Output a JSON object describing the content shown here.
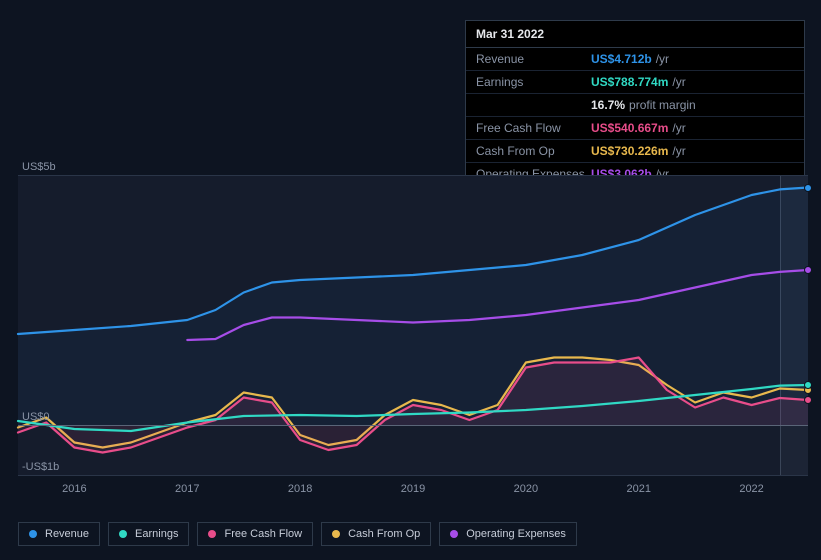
{
  "tooltip": {
    "date": "Mar 31 2022",
    "rows": [
      {
        "label": "Revenue",
        "value": "US$4.712b",
        "unit": "/yr",
        "color": "#2e93e8"
      },
      {
        "label": "Earnings",
        "value": "US$788.774m",
        "unit": "/yr",
        "color": "#30d9c4",
        "sub_value": "16.7%",
        "sub_label": "profit margin"
      },
      {
        "label": "Free Cash Flow",
        "value": "US$540.667m",
        "unit": "/yr",
        "color": "#e84d8a"
      },
      {
        "label": "Cash From Op",
        "value": "US$730.226m",
        "unit": "/yr",
        "color": "#e8b84d"
      },
      {
        "label": "Operating Expenses",
        "value": "US$3.062b",
        "unit": "/yr",
        "color": "#a64de8"
      }
    ]
  },
  "chart": {
    "type": "line",
    "background_color": "#151c2c",
    "page_background": "#0d1421",
    "grid_color": "#2a3548",
    "zero_line_color": "#5a6578",
    "font_size": 11,
    "label_color": "#8a94a6",
    "ylim": [
      -1000,
      5000
    ],
    "y_ticks": [
      {
        "value": 5000,
        "label": "US$5b"
      },
      {
        "value": 0,
        "label": "US$0"
      },
      {
        "value": -1000,
        "label": "-US$1b"
      }
    ],
    "xlim": [
      2015.5,
      2022.5
    ],
    "x_ticks": [
      2016,
      2017,
      2018,
      2019,
      2020,
      2021,
      2022
    ],
    "marker_x": 2022.25,
    "highlight_from": 2022.25,
    "line_width": 2.2,
    "end_dot_radius": 4,
    "series": [
      {
        "name": "Revenue",
        "color": "#2e93e8",
        "fill_opacity": 0.05,
        "points": [
          [
            2015.5,
            1820
          ],
          [
            2016,
            1900
          ],
          [
            2016.5,
            1980
          ],
          [
            2017,
            2100
          ],
          [
            2017.25,
            2300
          ],
          [
            2017.5,
            2650
          ],
          [
            2017.75,
            2850
          ],
          [
            2018,
            2900
          ],
          [
            2018.5,
            2950
          ],
          [
            2019,
            3000
          ],
          [
            2019.5,
            3100
          ],
          [
            2020,
            3200
          ],
          [
            2020.5,
            3400
          ],
          [
            2021,
            3700
          ],
          [
            2021.5,
            4200
          ],
          [
            2022,
            4600
          ],
          [
            2022.25,
            4712
          ],
          [
            2022.5,
            4750
          ]
        ]
      },
      {
        "name": "Operating Expenses",
        "color": "#a64de8",
        "fill_opacity": 0.0,
        "start_x": 2017,
        "points": [
          [
            2017,
            1700
          ],
          [
            2017.25,
            1720
          ],
          [
            2017.5,
            2000
          ],
          [
            2017.75,
            2150
          ],
          [
            2018,
            2150
          ],
          [
            2018.5,
            2100
          ],
          [
            2019,
            2050
          ],
          [
            2019.5,
            2100
          ],
          [
            2020,
            2200
          ],
          [
            2020.5,
            2350
          ],
          [
            2021,
            2500
          ],
          [
            2021.5,
            2750
          ],
          [
            2022,
            3000
          ],
          [
            2022.25,
            3062
          ],
          [
            2022.5,
            3100
          ]
        ]
      },
      {
        "name": "Cash From Op",
        "color": "#e8b84d",
        "fill_opacity": 0.0,
        "points": [
          [
            2015.5,
            -50
          ],
          [
            2015.75,
            150
          ],
          [
            2016,
            -350
          ],
          [
            2016.25,
            -450
          ],
          [
            2016.5,
            -350
          ],
          [
            2016.75,
            -150
          ],
          [
            2017,
            50
          ],
          [
            2017.25,
            200
          ],
          [
            2017.5,
            650
          ],
          [
            2017.75,
            550
          ],
          [
            2018,
            -200
          ],
          [
            2018.25,
            -400
          ],
          [
            2018.5,
            -300
          ],
          [
            2018.75,
            200
          ],
          [
            2019,
            500
          ],
          [
            2019.25,
            400
          ],
          [
            2019.5,
            200
          ],
          [
            2019.75,
            400
          ],
          [
            2020,
            1250
          ],
          [
            2020.25,
            1350
          ],
          [
            2020.5,
            1350
          ],
          [
            2020.75,
            1300
          ],
          [
            2021,
            1200
          ],
          [
            2021.25,
            800
          ],
          [
            2021.5,
            450
          ],
          [
            2021.75,
            650
          ],
          [
            2022,
            550
          ],
          [
            2022.25,
            730
          ],
          [
            2022.5,
            700
          ]
        ]
      },
      {
        "name": "Free Cash Flow",
        "color": "#e84d8a",
        "fill_opacity": 0.1,
        "points": [
          [
            2015.5,
            -150
          ],
          [
            2015.75,
            50
          ],
          [
            2016,
            -450
          ],
          [
            2016.25,
            -550
          ],
          [
            2016.5,
            -450
          ],
          [
            2016.75,
            -250
          ],
          [
            2017,
            -50
          ],
          [
            2017.25,
            100
          ],
          [
            2017.5,
            550
          ],
          [
            2017.75,
            450
          ],
          [
            2018,
            -300
          ],
          [
            2018.25,
            -500
          ],
          [
            2018.5,
            -400
          ],
          [
            2018.75,
            100
          ],
          [
            2019,
            400
          ],
          [
            2019.25,
            300
          ],
          [
            2019.5,
            100
          ],
          [
            2019.75,
            300
          ],
          [
            2020,
            1150
          ],
          [
            2020.25,
            1250
          ],
          [
            2020.5,
            1250
          ],
          [
            2020.75,
            1250
          ],
          [
            2021,
            1350
          ],
          [
            2021.25,
            700
          ],
          [
            2021.5,
            350
          ],
          [
            2021.75,
            550
          ],
          [
            2022,
            400
          ],
          [
            2022.25,
            540
          ],
          [
            2022.5,
            500
          ]
        ]
      },
      {
        "name": "Earnings",
        "color": "#30d9c4",
        "fill_opacity": 0.0,
        "points": [
          [
            2015.5,
            80
          ],
          [
            2016,
            -80
          ],
          [
            2016.5,
            -120
          ],
          [
            2017,
            50
          ],
          [
            2017.5,
            180
          ],
          [
            2018,
            200
          ],
          [
            2018.5,
            180
          ],
          [
            2019,
            220
          ],
          [
            2019.5,
            250
          ],
          [
            2020,
            300
          ],
          [
            2020.5,
            380
          ],
          [
            2021,
            480
          ],
          [
            2021.5,
            600
          ],
          [
            2022,
            720
          ],
          [
            2022.25,
            789
          ],
          [
            2022.5,
            800
          ]
        ]
      }
    ]
  },
  "legend": [
    {
      "label": "Revenue",
      "color": "#2e93e8"
    },
    {
      "label": "Earnings",
      "color": "#30d9c4"
    },
    {
      "label": "Free Cash Flow",
      "color": "#e84d8a"
    },
    {
      "label": "Cash From Op",
      "color": "#e8b84d"
    },
    {
      "label": "Operating Expenses",
      "color": "#a64de8"
    }
  ]
}
